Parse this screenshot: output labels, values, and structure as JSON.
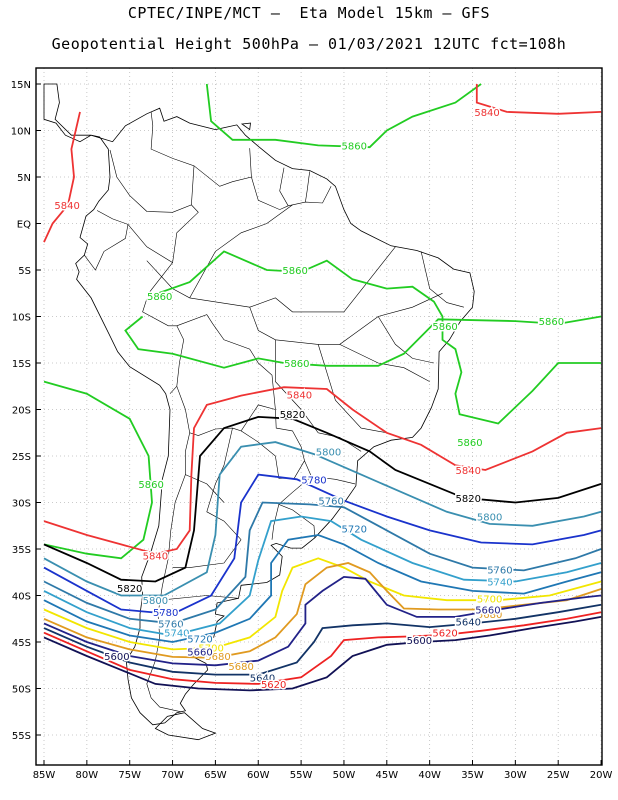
{
  "title_line1": "CPTEC/INPE/MCT –  Eta Model 15km – GFS",
  "title_line2": "Geopotential Height 500hPa – 01/03/2021 12UTC fct=108h",
  "lat_labels": [
    "15N",
    "10N",
    "5N",
    "EQ",
    "5S",
    "10S",
    "15S",
    "20S",
    "25S",
    "30S",
    "35S",
    "40S",
    "45S",
    "50S",
    "55S"
  ],
  "lon_labels": [
    "85W",
    "80W",
    "75W",
    "70W",
    "65W",
    "60W",
    "55W",
    "50W",
    "45W",
    "40W",
    "35W",
    "30W",
    "25W",
    "20W"
  ],
  "contour_colors": {
    "5860": "#22cc22",
    "5840": "#ee3333",
    "5820": "#000000",
    "5800": "#3a8fb0",
    "5780": "#1a33cc",
    "5760": "#2e79a8",
    "5740": "#33a0cc",
    "5720": "#1f77b4",
    "5700": "#f2e600",
    "5680": "#e09a20",
    "5660": "#222288",
    "5640": "#123366",
    "5620": "#ee2222",
    "5600": "#111155"
  },
  "contour_labels": [
    {
      "text": "5860",
      "level": "5860",
      "lon": -48.8,
      "lat": 8.4
    },
    {
      "text": "5860",
      "level": "5860",
      "lon": -71.5,
      "lat": -7.8
    },
    {
      "text": "5860",
      "level": "5860",
      "lon": -55.7,
      "lat": -5.0
    },
    {
      "text": "5860",
      "level": "5860",
      "lon": -38.2,
      "lat": -11.0
    },
    {
      "text": "5860",
      "level": "5860",
      "lon": -25.8,
      "lat": -10.5
    },
    {
      "text": "5860",
      "level": "5860",
      "lon": -55.5,
      "lat": -15.0
    },
    {
      "text": "5860",
      "level": "5860",
      "lon": -35.3,
      "lat": -23.5
    },
    {
      "text": "5860",
      "level": "5860",
      "lon": -72.5,
      "lat": -28.0
    },
    {
      "text": "5840",
      "level": "5840",
      "lon": -33.3,
      "lat": 12.0
    },
    {
      "text": "5840",
      "level": "5840",
      "lon": -82.3,
      "lat": 2.0
    },
    {
      "text": "5840",
      "level": "5840",
      "lon": -55.2,
      "lat": -18.4
    },
    {
      "text": "5840",
      "level": "5840",
      "lon": -35.5,
      "lat": -26.5
    },
    {
      "text": "5840",
      "level": "5840",
      "lon": -72.0,
      "lat": -35.7
    },
    {
      "text": "5820",
      "level": "5820",
      "lon": -56.0,
      "lat": -20.5
    },
    {
      "text": "5820",
      "level": "5820",
      "lon": -35.5,
      "lat": -29.5
    },
    {
      "text": "5820",
      "level": "5820",
      "lon": -75.0,
      "lat": -39.2
    },
    {
      "text": "5800",
      "level": "5800",
      "lon": -51.8,
      "lat": -24.5
    },
    {
      "text": "5800",
      "level": "5800",
      "lon": -33.0,
      "lat": -31.5
    },
    {
      "text": "5800",
      "level": "5800",
      "lon": -72.0,
      "lat": -40.5
    },
    {
      "text": "5780",
      "level": "5780",
      "lon": -53.5,
      "lat": -27.5
    },
    {
      "text": "5780",
      "level": "5780",
      "lon": -70.8,
      "lat": -41.8
    },
    {
      "text": "5760",
      "level": "5760",
      "lon": -51.5,
      "lat": -29.8
    },
    {
      "text": "5760",
      "level": "5760",
      "lon": -31.8,
      "lat": -37.2
    },
    {
      "text": "5760",
      "level": "5760",
      "lon": -70.2,
      "lat": -43.0
    },
    {
      "text": "5740",
      "level": "5740",
      "lon": -31.8,
      "lat": -38.5
    },
    {
      "text": "5740",
      "level": "5740",
      "lon": -69.5,
      "lat": -44.0
    },
    {
      "text": "5720",
      "level": "5720",
      "lon": -48.8,
      "lat": -32.8
    },
    {
      "text": "5720",
      "level": "5720",
      "lon": -66.8,
      "lat": -44.6
    },
    {
      "text": "5700",
      "level": "5700",
      "lon": -33.0,
      "lat": -40.3
    },
    {
      "text": "5700",
      "level": "5700",
      "lon": -65.5,
      "lat": -45.6
    },
    {
      "text": "5680",
      "level": "5680",
      "lon": -33.0,
      "lat": -42.0
    },
    {
      "text": "5680",
      "level": "5680",
      "lon": -64.7,
      "lat": -46.5
    },
    {
      "text": "5680",
      "level": "5680",
      "lon": -62.0,
      "lat": -47.6
    },
    {
      "text": "5660",
      "level": "5660",
      "lon": -33.2,
      "lat": -41.5
    },
    {
      "text": "5660",
      "level": "5660",
      "lon": -66.8,
      "lat": -46.0
    },
    {
      "text": "5640",
      "level": "5640",
      "lon": -35.5,
      "lat": -42.8
    },
    {
      "text": "5640",
      "level": "5640",
      "lon": -59.5,
      "lat": -48.8
    },
    {
      "text": "5620",
      "level": "5620",
      "lon": -38.2,
      "lat": -44.0
    },
    {
      "text": "5620",
      "level": "5620",
      "lon": -58.2,
      "lat": -49.5
    },
    {
      "text": "5600",
      "level": "5600",
      "lon": -41.2,
      "lat": -44.8
    },
    {
      "text": "5600",
      "level": "5600",
      "lon": -76.5,
      "lat": -46.5
    }
  ]
}
